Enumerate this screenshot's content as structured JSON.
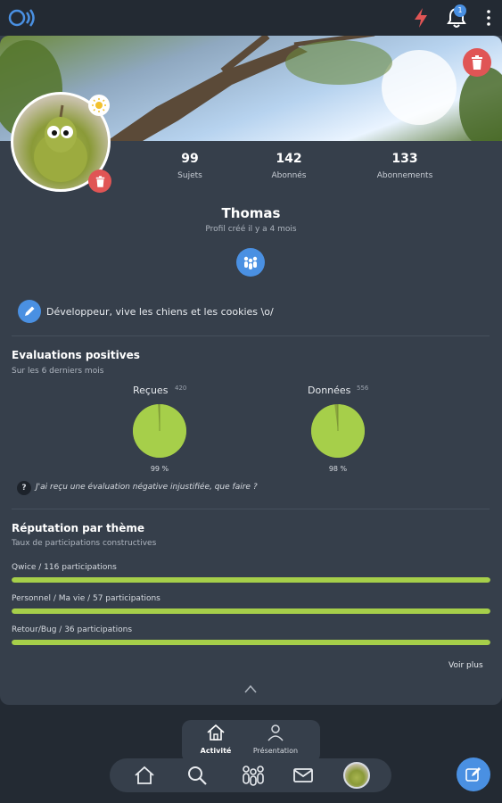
{
  "topbar": {
    "logo": "app-logo-icon",
    "notifications_count": "1"
  },
  "profile": {
    "name": "Thomas",
    "created": "Profil créé il y a 4 mois",
    "bio": "Développeur, vive les chiens et les cookies \\o/",
    "stats": [
      {
        "value": "99",
        "label": "Sujets"
      },
      {
        "value": "142",
        "label": "Abonnés"
      },
      {
        "value": "133",
        "label": "Abonnements"
      }
    ]
  },
  "evaluations": {
    "title": "Evaluations positives",
    "subtitle": "Sur les 6 derniers mois",
    "received": {
      "label": "Reçues",
      "count": "420",
      "percent_label": "99 %",
      "percent": 99
    },
    "given": {
      "label": "Données",
      "count": "556",
      "percent_label": "98 %",
      "percent": 98
    },
    "help": "J'ai reçu une évaluation négative injustifiée, que faire ?"
  },
  "reputation": {
    "title": "Réputation par thème",
    "subtitle": "Taux de participations constructives",
    "themes": [
      {
        "label": "Qwice / 116 participations",
        "fill": 1.0
      },
      {
        "label": "Personnel / Ma vie / 57 participations",
        "fill": 1.0
      },
      {
        "label": "Retour/Bug / 36 participations",
        "fill": 1.0
      }
    ],
    "more": "Voir plus"
  },
  "tabs": [
    {
      "label": "Activité",
      "icon": "home-icon"
    },
    {
      "label": "Présentation",
      "icon": "person-icon"
    }
  ],
  "nav": [
    "home-icon",
    "search-icon",
    "community-icon",
    "mail-icon",
    "avatar"
  ],
  "colors": {
    "accent": "#4a90e2",
    "positive": "#a6cf4a",
    "danger": "#e05555",
    "card": "#363f4b",
    "background": "#232a33"
  }
}
